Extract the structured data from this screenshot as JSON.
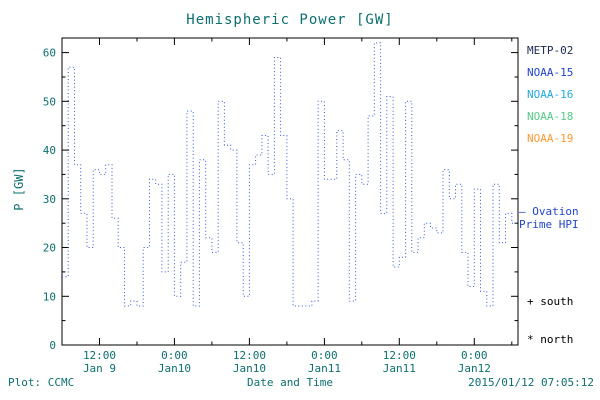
{
  "title": "Hemispheric Power [GW]",
  "colors": {
    "text": "#0e6f6f",
    "axis": "#000000",
    "line": "#3355cc"
  },
  "footer": {
    "plot_credit": "Plot: CCMC",
    "xlabel": "Date and Time",
    "timestamp": "2015/01/12 07:05:12"
  },
  "legend": {
    "satellites": [
      {
        "label": "METP-02",
        "color": "#1b2a52"
      },
      {
        "label": "NOAA-15",
        "color": "#2244cc"
      },
      {
        "label": "NOAA-16",
        "color": "#22aadd"
      },
      {
        "label": "NOAA-18",
        "color": "#55cc88"
      },
      {
        "label": "NOAA-19",
        "color": "#ff9933"
      }
    ],
    "ovation": {
      "line1": "— Ovation",
      "line2": "Prime HPI",
      "color": "#2244cc"
    },
    "south": {
      "symbol": "+",
      "label": "south"
    },
    "north": {
      "symbol": "*",
      "label": "north"
    }
  },
  "chart_data": {
    "type": "line",
    "style": "step-dotted",
    "series_name": "Ovation Prime HPI",
    "title": "Hemispheric Power [GW]",
    "xlabel": "Date and Time",
    "ylabel": "P [GW]",
    "xlim": [
      0,
      73
    ],
    "ylim": [
      0,
      63
    ],
    "x_unit": "hours",
    "dt_hours": 1,
    "grid": false,
    "legend_position": "right",
    "y_ticks": [
      0,
      10,
      20,
      30,
      40,
      50,
      60
    ],
    "y_minor_step": 5,
    "x_minor_step": 6,
    "x_ticks": [
      {
        "t": 6,
        "time": "12:00",
        "date": "Jan 9"
      },
      {
        "t": 18,
        "time": "0:00",
        "date": "Jan10"
      },
      {
        "t": 30,
        "time": "12:00",
        "date": "Jan10"
      },
      {
        "t": 42,
        "time": "0:00",
        "date": "Jan11"
      },
      {
        "t": 54,
        "time": "12:00",
        "date": "Jan11"
      },
      {
        "t": 66,
        "time": "0:00",
        "date": "Jan12"
      }
    ],
    "values": [
      14,
      57,
      37,
      27,
      20,
      36,
      35,
      37,
      26,
      20,
      8,
      9,
      8,
      20,
      34,
      33,
      15,
      35,
      10,
      17,
      48,
      8,
      38,
      22,
      19,
      50,
      41,
      40,
      21,
      10,
      37,
      39,
      43,
      35,
      59,
      43,
      30,
      8,
      8,
      8,
      9,
      50,
      34,
      34,
      44,
      38,
      9,
      35,
      33,
      47,
      62,
      27,
      51,
      16,
      18,
      50,
      19,
      22,
      25,
      24,
      23,
      36,
      30,
      33,
      19,
      12,
      32,
      11,
      8,
      33,
      21,
      27,
      25
    ]
  }
}
